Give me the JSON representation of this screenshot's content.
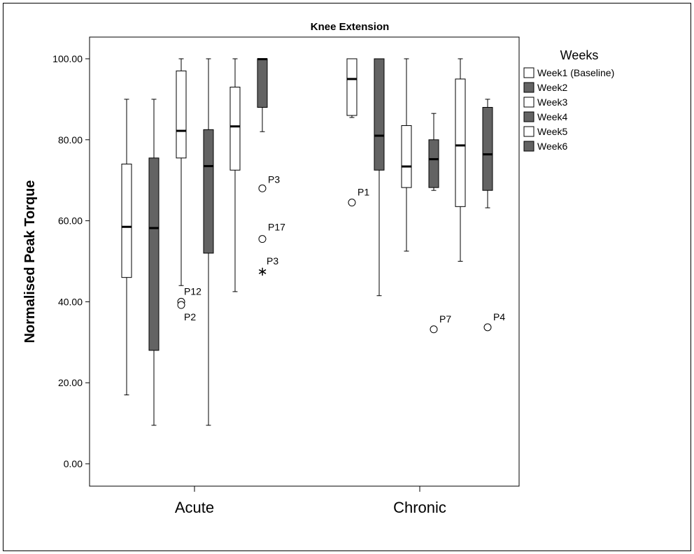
{
  "chart_data": {
    "type": "boxplot",
    "title": "Knee Extension",
    "ylabel": "Normalised Peak Torque",
    "xlabel": "",
    "ylim": [
      -5,
      108
    ],
    "yticks": [
      0,
      20,
      40,
      60,
      80,
      100
    ],
    "ytick_labels": [
      "0.00",
      "20.00",
      "40.00",
      "60.00",
      "80.00",
      "100.00"
    ],
    "categories": [
      "Acute",
      "Chronic"
    ],
    "legend": {
      "title": "Weeks",
      "placement": "right",
      "entries": [
        {
          "label": "Week1 (Baseline)",
          "color": "#ffffff"
        },
        {
          "label": "Week2",
          "color": "#636363"
        },
        {
          "label": "Week3",
          "color": "#ffffff"
        },
        {
          "label": "Week4",
          "color": "#636363"
        },
        {
          "label": "Week5",
          "color": "#ffffff"
        },
        {
          "label": "Week6",
          "color": "#636363"
        }
      ]
    },
    "boxes": {
      "Acute": [
        {
          "series": "Week1 (Baseline)",
          "whisker_low": 17,
          "q1": 46,
          "median": 58.5,
          "q3": 74,
          "whisker_high": 90,
          "outliers": []
        },
        {
          "series": "Week2",
          "whisker_low": 9.5,
          "q1": 28,
          "median": 58.2,
          "q3": 75.5,
          "whisker_high": 90,
          "outliers": []
        },
        {
          "series": "Week3",
          "whisker_low": 44,
          "q1": 75.5,
          "median": 82.2,
          "q3": 97,
          "whisker_high": 100,
          "outliers": [
            {
              "value": 40,
              "label": "P12",
              "marker": "circle"
            },
            {
              "value": 39.2,
              "label": "P2",
              "marker": "circle"
            }
          ]
        },
        {
          "series": "Week4",
          "whisker_low": 9.5,
          "q1": 52,
          "median": 73.5,
          "q3": 82.5,
          "whisker_high": 100,
          "outliers": []
        },
        {
          "series": "Week5",
          "whisker_low": 42.5,
          "q1": 72.5,
          "median": 83.3,
          "q3": 93,
          "whisker_high": 100,
          "outliers": []
        },
        {
          "series": "Week6",
          "whisker_low": 82,
          "q1": 88,
          "median": 99.9,
          "q3": 100,
          "whisker_high": 100,
          "outliers": [
            {
              "value": 68,
              "label": "P3",
              "marker": "circle"
            },
            {
              "value": 55.5,
              "label": "P17",
              "marker": "circle"
            },
            {
              "value": 47.5,
              "label": "P3",
              "marker": "star"
            }
          ]
        }
      ],
      "Chronic": [
        {
          "series": "Week1 (Baseline)",
          "whisker_low": 85.5,
          "q1": 86,
          "median": 95,
          "q3": 100,
          "whisker_high": 100,
          "outliers": [
            {
              "value": 64.5,
              "label": "P1",
              "marker": "circle"
            }
          ]
        },
        {
          "series": "Week2",
          "whisker_low": 41.5,
          "q1": 72.5,
          "median": 81,
          "q3": 100,
          "whisker_high": 100,
          "outliers": []
        },
        {
          "series": "Week3",
          "whisker_low": 52.5,
          "q1": 68.2,
          "median": 73.4,
          "q3": 83.5,
          "whisker_high": 100,
          "outliers": []
        },
        {
          "series": "Week4",
          "whisker_low": 67.5,
          "q1": 68.2,
          "median": 75.2,
          "q3": 80,
          "whisker_high": 86.5,
          "outliers": [
            {
              "value": 33.2,
              "label": "P7",
              "marker": "circle"
            }
          ]
        },
        {
          "series": "Week5",
          "whisker_low": 50,
          "q1": 63.5,
          "median": 78.6,
          "q3": 95,
          "whisker_high": 100,
          "outliers": []
        },
        {
          "series": "Week6",
          "whisker_low": 63.2,
          "q1": 67.5,
          "median": 76.4,
          "q3": 88,
          "whisker_high": 90,
          "outliers": [
            {
              "value": 33.7,
              "label": "P4",
              "marker": "circle"
            }
          ]
        }
      ]
    }
  }
}
